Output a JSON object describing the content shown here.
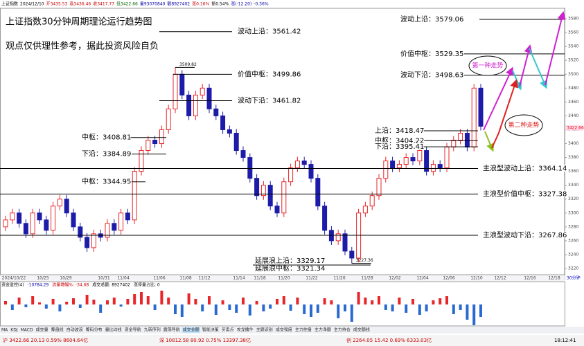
{
  "header": {
    "info": [
      "上证指数",
      "2024/12/10",
      "开3435.53",
      "高3436.46",
      "收3417.77",
      "低3422.66",
      "量93070840",
      "额8927402",
      "涨0.16%",
      "振0.54%",
      "涨(-12.20)",
      "-0.36%"
    ]
  },
  "annotations": {
    "title": "上证指数30分钟周期理论运行趋势图",
    "note": "观点仅供理性参考，据此投资风险自负",
    "scenario_1": "第一种走势",
    "scenario_2": "第二种走势"
  },
  "chart_data": {
    "type": "candlestick",
    "up_color": "#e8262a",
    "down_color": "#1c1ca8",
    "x_labels": [
      "2024/10/22",
      "10/25",
      "10/29",
      "10/31",
      "11/04",
      "11/06",
      "11/08",
      "11/12",
      "11/14",
      "11/18",
      "11/20",
      "11/22",
      "11/26",
      "11/28",
      "12/02",
      "12/04",
      "12/06",
      "12/10",
      "12/12",
      "12/16",
      "12/18"
    ],
    "period": "30分钟",
    "ylim": [
      3213,
      3604
    ],
    "yticks": [
      3220,
      3240,
      3260,
      3280,
      3300,
      3320,
      3340,
      3360,
      3380,
      3400,
      3420,
      3440,
      3460,
      3480,
      3500,
      3520,
      3540,
      3560,
      3580
    ],
    "last_price": 3422.66,
    "ohlc": [
      [
        3280,
        3296,
        3274,
        3290
      ],
      [
        3290,
        3306,
        3284,
        3300
      ],
      [
        3300,
        3306,
        3279,
        3285
      ],
      [
        3285,
        3291,
        3264,
        3270
      ],
      [
        3270,
        3306,
        3264,
        3300
      ],
      [
        3300,
        3306,
        3284,
        3290
      ],
      [
        3290,
        3296,
        3269,
        3275
      ],
      [
        3275,
        3316,
        3269,
        3310
      ],
      [
        3310,
        3326,
        3304,
        3320
      ],
      [
        3320,
        3326,
        3294,
        3300
      ],
      [
        3300,
        3306,
        3274,
        3280
      ],
      [
        3280,
        3286,
        3259,
        3265
      ],
      [
        3265,
        3271,
        3244,
        3250
      ],
      [
        3250,
        3276,
        3244,
        3270
      ],
      [
        3270,
        3276,
        3259,
        3265
      ],
      [
        3265,
        3291,
        3259,
        3285
      ],
      [
        3285,
        3291,
        3269,
        3275
      ],
      [
        3275,
        3306,
        3269,
        3300
      ],
      [
        3300,
        3306,
        3284,
        3290
      ],
      [
        3290,
        3366,
        3284,
        3360
      ],
      [
        3360,
        3396,
        3354,
        3390
      ],
      [
        3390,
        3411,
        3384,
        3405
      ],
      [
        3405,
        3411,
        3394,
        3400
      ],
      [
        3400,
        3426,
        3394,
        3420
      ],
      [
        3420,
        3456,
        3414,
        3450
      ],
      [
        3450,
        3509.82,
        3444,
        3500
      ],
      [
        3500,
        3506,
        3464,
        3470
      ],
      [
        3470,
        3476,
        3434,
        3440
      ],
      [
        3440,
        3476,
        3434,
        3470
      ],
      [
        3470,
        3486,
        3464,
        3480
      ],
      [
        3480,
        3486,
        3444,
        3450
      ],
      [
        3450,
        3456,
        3434,
        3440
      ],
      [
        3440,
        3446,
        3414,
        3420
      ],
      [
        3420,
        3426,
        3409,
        3415
      ],
      [
        3415,
        3421,
        3384,
        3390
      ],
      [
        3390,
        3396,
        3374,
        3380
      ],
      [
        3380,
        3386,
        3344,
        3350
      ],
      [
        3350,
        3356,
        3319,
        3325
      ],
      [
        3325,
        3346,
        3319,
        3340
      ],
      [
        3340,
        3346,
        3304,
        3310
      ],
      [
        3310,
        3316,
        3294,
        3300
      ],
      [
        3300,
        3351,
        3294,
        3345
      ],
      [
        3345,
        3371,
        3339,
        3365
      ],
      [
        3365,
        3381,
        3359,
        3375
      ],
      [
        3375,
        3381,
        3364,
        3370
      ],
      [
        3370,
        3376,
        3344,
        3350
      ],
      [
        3350,
        3356,
        3304,
        3310
      ],
      [
        3310,
        3316,
        3269,
        3275
      ],
      [
        3275,
        3281,
        3254,
        3260
      ],
      [
        3260,
        3276,
        3254,
        3270
      ],
      [
        3270,
        3276,
        3239,
        3245
      ],
      [
        3245,
        3251,
        3227.36,
        3235
      ],
      [
        3235,
        3306,
        3229,
        3300
      ],
      [
        3300,
        3316,
        3294,
        3310
      ],
      [
        3310,
        3331,
        3304,
        3325
      ],
      [
        3325,
        3356,
        3319,
        3350
      ],
      [
        3350,
        3381,
        3344,
        3375
      ],
      [
        3375,
        3381,
        3359,
        3365
      ],
      [
        3365,
        3376,
        3359,
        3370
      ],
      [
        3370,
        3386,
        3364,
        3380
      ],
      [
        3380,
        3386,
        3369,
        3375
      ],
      [
        3375,
        3396,
        3369,
        3390
      ],
      [
        3390,
        3396,
        3354,
        3360
      ],
      [
        3360,
        3376,
        3354,
        3370
      ],
      [
        3370,
        3376,
        3359,
        3365
      ],
      [
        3365,
        3401,
        3359,
        3395
      ],
      [
        3395,
        3411,
        3389,
        3405
      ],
      [
        3405,
        3421,
        3399,
        3415
      ],
      [
        3415,
        3421,
        3389,
        3395
      ],
      [
        3395,
        3486,
        3389,
        3480
      ],
      [
        3480,
        3486,
        3419,
        3425
      ]
    ],
    "levels": [
      {
        "label": "波动上沿：",
        "value": 3561.42
      },
      {
        "label": "价值中枢：",
        "value": 3499.86
      },
      {
        "label": "波动下沿：",
        "value": 3461.82
      },
      {
        "label": "中枢：",
        "value": 3408.81
      },
      {
        "label": "下沿：",
        "value": 3384.89
      },
      {
        "label": "中枢：",
        "value": 3344.95
      },
      {
        "label": "主浪型波动上沿：",
        "value": 3364.14
      },
      {
        "label": "主浪型价值中枢：",
        "value": 3327.38
      },
      {
        "label": "主浪型波动下沿：",
        "value": 3267.86
      },
      {
        "label": "波动上沿：",
        "value": 3579.06
      },
      {
        "label": "价值中枢：",
        "value": 3529.35
      },
      {
        "label": "波动下沿：",
        "value": 3498.63
      },
      {
        "label": "上沿：",
        "value": 3418.47
      },
      {
        "label": "中枢：",
        "value": 3404.22
      },
      {
        "label": "下沿：",
        "value": 3395.41
      }
    ],
    "notes": [
      {
        "label": "延展浪上沿：",
        "value": 3329.17
      },
      {
        "label": "延展浪中枢：",
        "value": 3321.34
      }
    ]
  },
  "indicator": {
    "readouts": [
      "资金监控(4)",
      "-10784.29",
      "流量增幅%: -34.68",
      "成交总额: 8927402",
      "涨停量占比: 0"
    ],
    "values": [
      5,
      -8,
      10,
      -4,
      12,
      3,
      -6,
      8,
      -10,
      4,
      9,
      -5,
      14,
      7,
      -12,
      6,
      10,
      -3,
      8,
      15,
      18,
      12,
      -8,
      20,
      10,
      -14,
      -18,
      16,
      8,
      -10,
      12,
      -15,
      6,
      -8,
      -12,
      10,
      -16,
      5,
      -10,
      -6,
      8,
      12,
      -9,
      10,
      -14,
      -18,
      -12,
      9,
      6,
      -20,
      -10,
      -25,
      18,
      10,
      6,
      12,
      -8,
      -10,
      10,
      -12,
      8,
      -15,
      -10,
      6,
      9,
      12,
      -14,
      -8,
      -22,
      -30,
      -18
    ]
  },
  "toolbar": [
    "MA",
    "KDJ",
    "MACD",
    "成交量",
    "筹盘线",
    "自动波浪",
    "筹码分布",
    "量比均线",
    "资金导航",
    "九转序列",
    "震荡导航",
    "成交金额",
    "智能决策",
    "买卖点",
    "攻龙擒牛",
    "主题识别",
    "成交强度",
    "主力控盘",
    "主力净额",
    "主力持仓",
    "成交额线"
  ],
  "status_bar": [
    "沪 3422.66 20.13 0.59% 8604.64亿",
    "深 10812.58 80.92 0.75% 13397.38亿",
    "创 2264.05 15.42 0.69% 6333.03亿",
    "18:12:41"
  ]
}
